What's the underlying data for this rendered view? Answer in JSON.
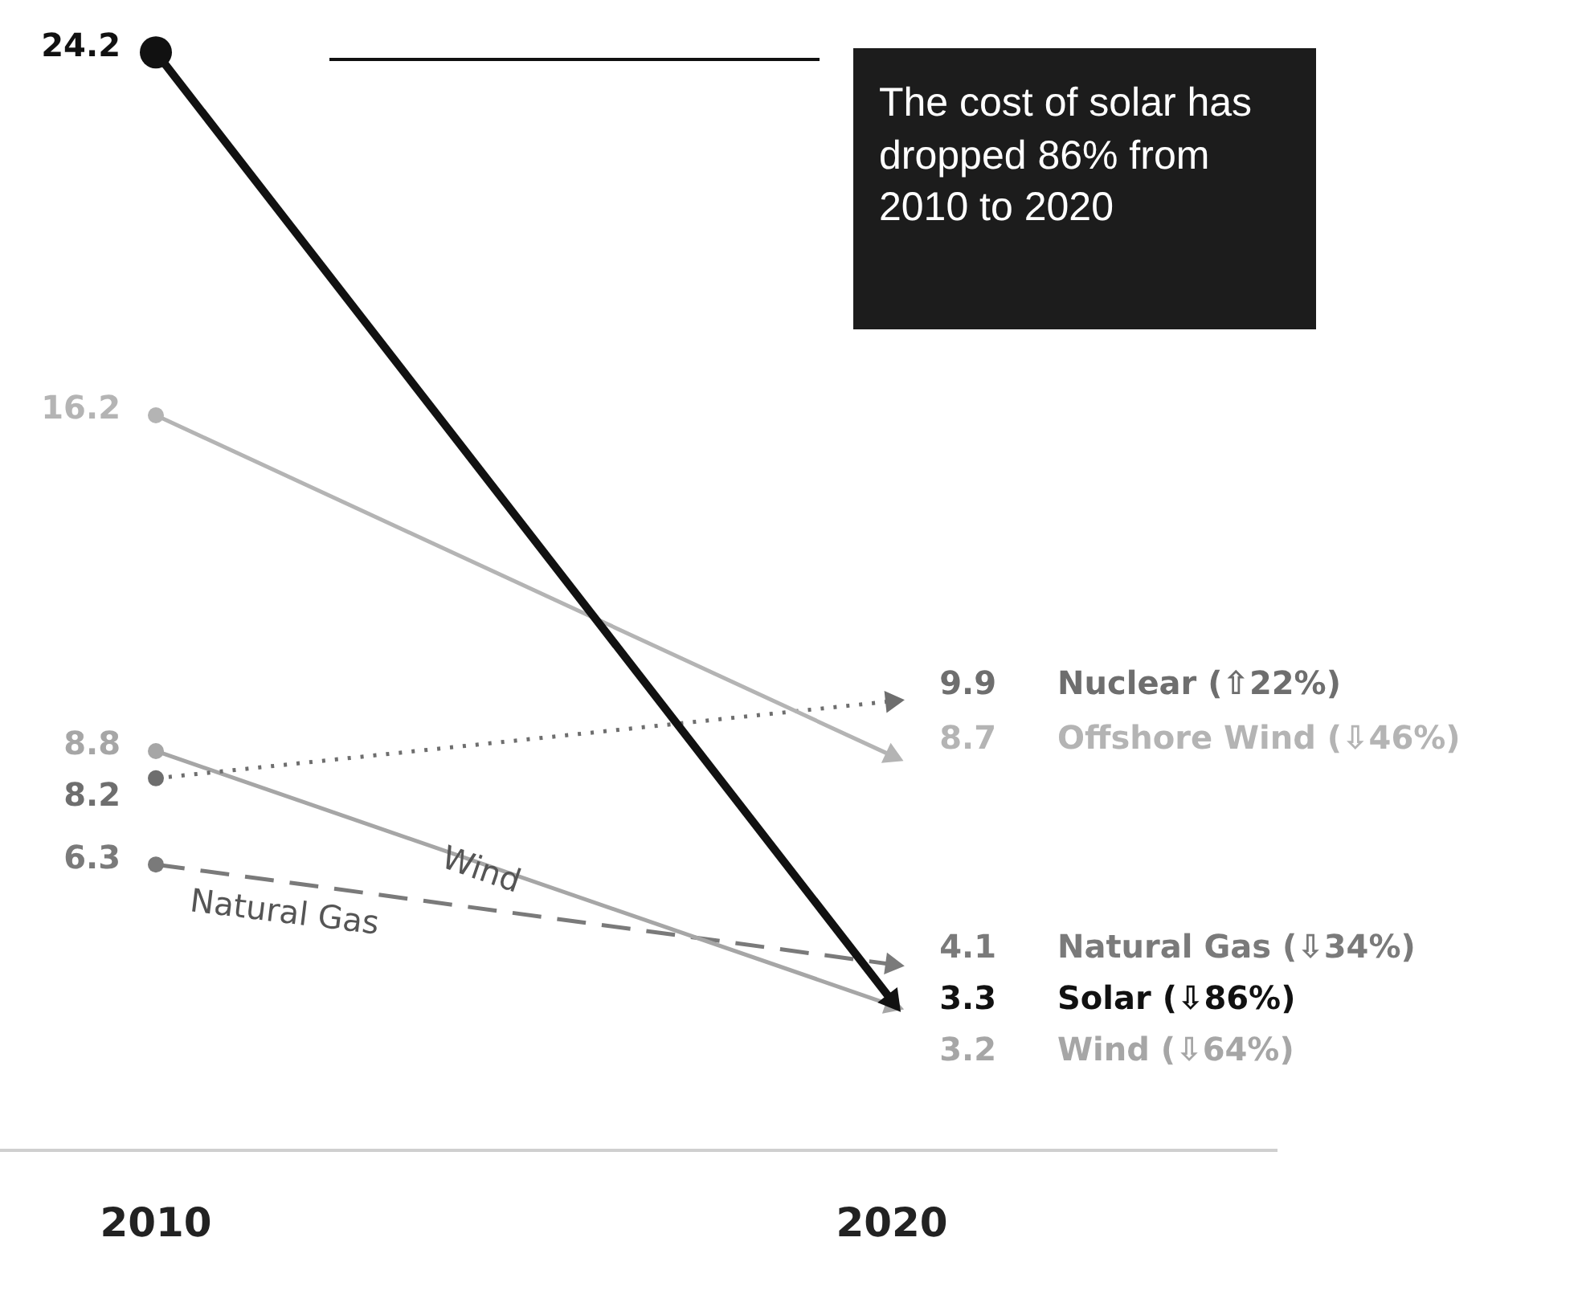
{
  "chart_data": {
    "type": "line",
    "categories": [
      "2010",
      "2020"
    ],
    "series": [
      {
        "name": "Solar (⇩86%)",
        "color": "#111111",
        "values": [
          24.2,
          3.3
        ]
      },
      {
        "name": "Offshore Wind (⇩46%)",
        "color": "#b4b4b4",
        "values": [
          16.2,
          8.7
        ]
      },
      {
        "name": "Nuclear (⇧22%)",
        "color": "#6e6e6e",
        "values": [
          8.2,
          9.9
        ],
        "line_style": "dotted"
      },
      {
        "name": "Wind (⇩64%)",
        "color": "#a6a6a6",
        "values": [
          8.8,
          3.2
        ]
      },
      {
        "name": "Natural Gas (⇩34%)",
        "color": "#7a7a7a",
        "values": [
          6.3,
          4.1
        ],
        "line_style": "dashed"
      }
    ],
    "annotations": [
      "The cost of solar has dropped 86% from 2010 to 2020",
      "Wind",
      "Natural Gas"
    ],
    "data_labels": true,
    "marker": "circle",
    "grid": false,
    "legend": false
  }
}
